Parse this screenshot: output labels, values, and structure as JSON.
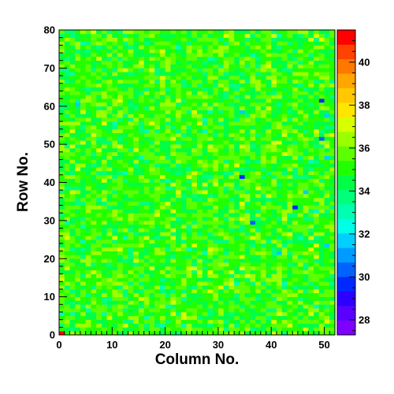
{
  "chart_data": {
    "type": "heatmap",
    "title": "",
    "xlabel": "Column No.",
    "ylabel": "Row No.",
    "xlim": [
      0,
      52
    ],
    "ylim": [
      0,
      80
    ],
    "zlim": [
      27.3,
      41.5
    ],
    "x_ticks": [
      0,
      10,
      20,
      30,
      40,
      50
    ],
    "y_ticks": [
      0,
      10,
      20,
      30,
      40,
      50,
      60,
      70,
      80
    ],
    "z_ticks": [
      28,
      30,
      32,
      34,
      36,
      38,
      40
    ],
    "n_columns": 52,
    "n_rows": 80,
    "typical_value_range": [
      33.5,
      37
    ],
    "typical_value_mean": 35.2,
    "notable_cells": [
      {
        "col": 0,
        "row": 0,
        "value": 41.0
      },
      {
        "col": 34,
        "row": 41,
        "value": 29.5
      },
      {
        "col": 44,
        "row": 33,
        "value": 29.5
      },
      {
        "col": 36,
        "row": 29,
        "value": 30.5
      },
      {
        "col": 49,
        "row": 61,
        "value": 29.5
      },
      {
        "col": 49,
        "row": 51,
        "value": 30.5
      },
      {
        "col": 46,
        "row": 37,
        "value": 31.5
      },
      {
        "col": 50,
        "row": 46,
        "value": 31.5
      },
      {
        "col": 50,
        "row": 23,
        "value": 31.8
      },
      {
        "col": 41,
        "row": 21,
        "value": 32.0
      },
      {
        "col": 3,
        "row": 60,
        "value": 32.0
      },
      {
        "col": 50,
        "row": 57,
        "value": 32.0
      },
      {
        "col": 34,
        "row": 58,
        "value": 32.0
      }
    ],
    "palette": [
      "#7f00ff",
      "#5a00ff",
      "#2b00ff",
      "#0028ff",
      "#0062ff",
      "#009bff",
      "#00cfff",
      "#00ffe6",
      "#00ffb0",
      "#00ff7a",
      "#00ff44",
      "#22ff00",
      "#5cff00",
      "#9bff00",
      "#d8ff00",
      "#ffe600",
      "#ffc800",
      "#ffa600",
      "#ff7800",
      "#ff4200",
      "#ff0000"
    ],
    "grid": false,
    "legend": "colorbar-right"
  }
}
